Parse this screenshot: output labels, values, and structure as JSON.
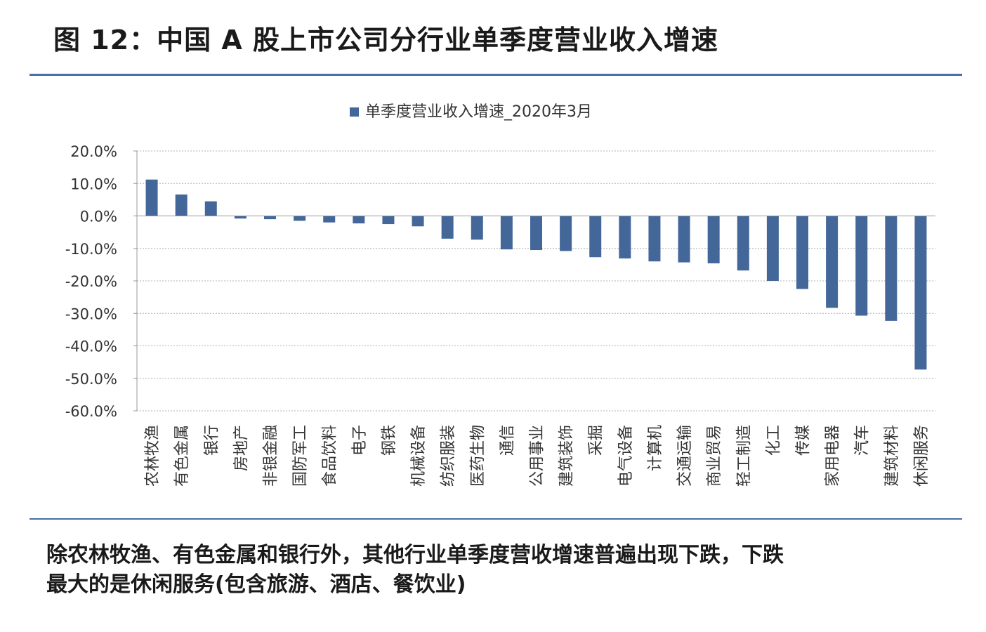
{
  "figure": {
    "title": "图 12：中国 A 股上市公司分行业单季度营业收入增速",
    "caption_line1": "除农林牧渔、有色金属和银行外，其他行业单季度营收增速普遍出现下跌，下跌",
    "caption_line2": "最大的是休闲服务(包含旅游、酒店、餐饮业)"
  },
  "colors": {
    "bar": "#44679a",
    "rule": "#4a6ea8",
    "grid": "#b0b0b0",
    "axis": "#999999"
  },
  "chart_data": {
    "type": "bar",
    "title": "",
    "xlabel": "",
    "ylabel": "",
    "ylim": [
      -60,
      20
    ],
    "yticks": [
      20,
      10,
      0,
      -10,
      -20,
      -30,
      -40,
      -50,
      -60
    ],
    "ytick_labels": [
      "20.0%",
      "10.0%",
      "0.0%",
      "-10.0%",
      "-20.0%",
      "-30.0%",
      "-40.0%",
      "-50.0%",
      "-60.0%"
    ],
    "grid": true,
    "legend_position": "top-center",
    "categories": [
      "农林牧渔",
      "有色金属",
      "银行",
      "房地产",
      "非银金融",
      "国防军工",
      "食品饮料",
      "电子",
      "钢铁",
      "机械设备",
      "纺织服装",
      "医药生物",
      "通信",
      "公用事业",
      "建筑装饰",
      "采掘",
      "电气设备",
      "计算机",
      "交通运输",
      "商业贸易",
      "轻工制造",
      "化工",
      "传媒",
      "家用电器",
      "汽车",
      "建筑材料",
      "休闲服务"
    ],
    "series": [
      {
        "name": "单季度营业收入增速_2020年3月",
        "values": [
          11.2,
          6.6,
          4.5,
          -0.8,
          -1.0,
          -1.5,
          -2.0,
          -2.3,
          -2.5,
          -3.2,
          -7.0,
          -7.3,
          -10.3,
          -10.5,
          -10.8,
          -12.7,
          -13.1,
          -14.0,
          -14.3,
          -14.6,
          -16.8,
          -20.0,
          -22.5,
          -28.3,
          -30.7,
          -32.3,
          -47.3
        ]
      }
    ]
  }
}
